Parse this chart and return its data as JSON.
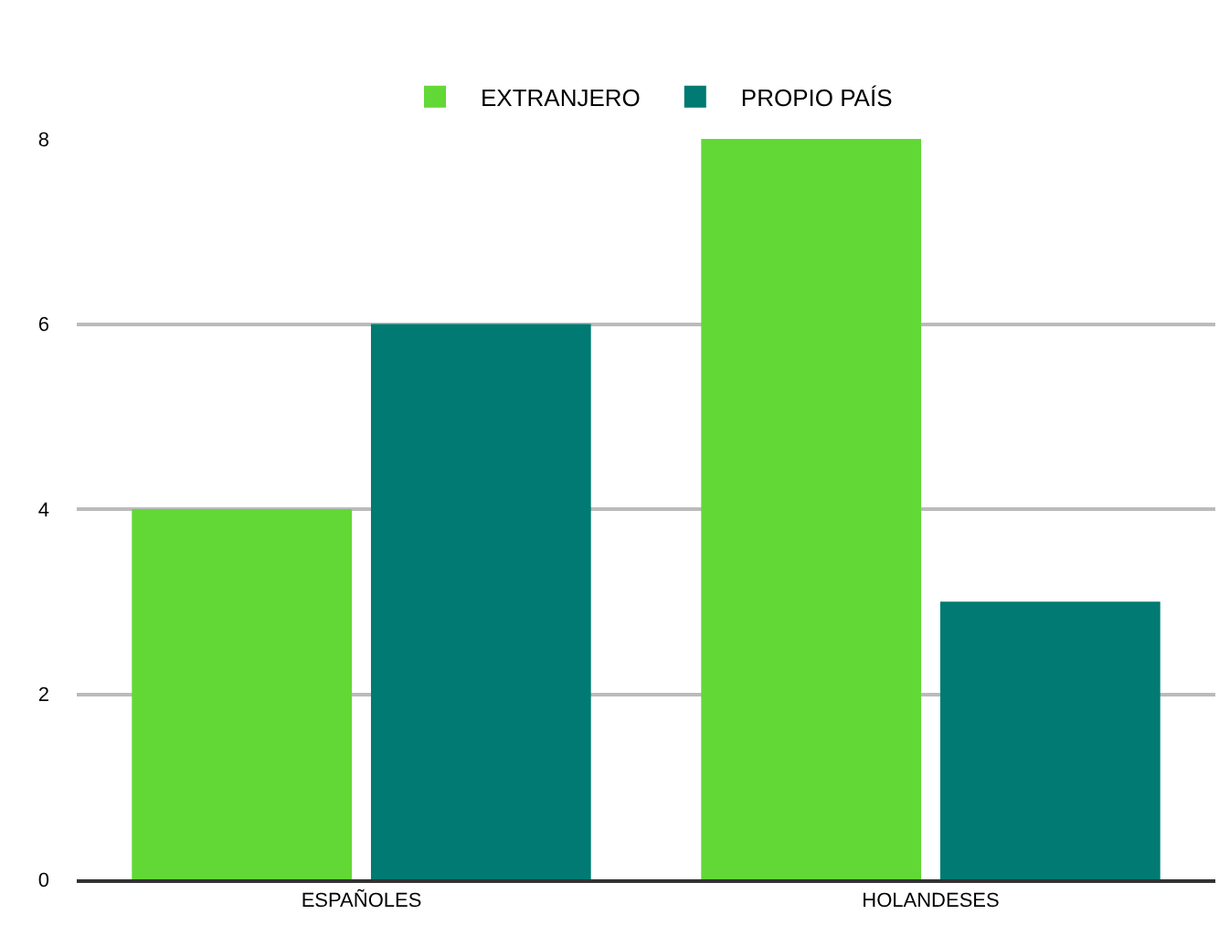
{
  "chart_data": {
    "type": "bar",
    "categories": [
      "ESPAÑOLES",
      "HOLANDESES"
    ],
    "series": [
      {
        "name": "EXTRANJERO",
        "color": "#62d836",
        "values": [
          4,
          8
        ]
      },
      {
        "name": "PROPIO PAÍS",
        "color": "#007a72",
        "values": [
          6,
          3
        ]
      }
    ],
    "ylim": [
      0,
      8
    ],
    "yticks": [
      0,
      2,
      4,
      6,
      8
    ],
    "grid": "y",
    "legend": "top"
  }
}
